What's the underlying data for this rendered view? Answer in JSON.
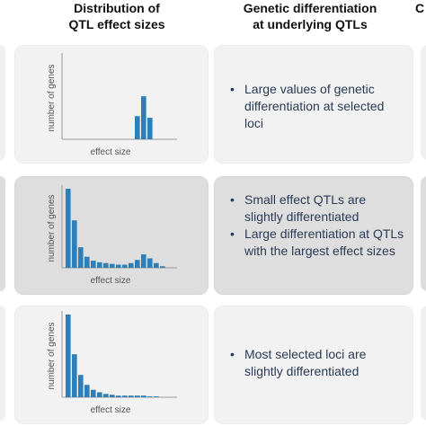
{
  "headers": {
    "left": [
      "Distribution of",
      "QTL effect sizes"
    ],
    "middle": [
      "Genetic differentiation",
      "at underlying QTLs"
    ],
    "right_clipped": "C"
  },
  "rows": [
    {
      "bullets": [
        "Large values of genetic differentiation at selected loci"
      ]
    },
    {
      "bullets": [
        "Small effect QTLs are slightly differentiated",
        "Large differentiation at QTLs with the largest effect sizes"
      ]
    },
    {
      "bullets": [
        "Most selected loci are slightly differentiated"
      ]
    }
  ],
  "chart_data": [
    {
      "type": "bar",
      "xlabel": "effect size",
      "ylabel": "number of genes",
      "values": [
        0,
        0,
        0,
        0,
        0,
        0,
        0,
        0,
        0,
        0,
        0,
        0.28,
        0.52,
        0.26,
        0,
        0
      ],
      "ylim": [
        0,
        1
      ]
    },
    {
      "type": "bar",
      "xlabel": "effect size",
      "ylabel": "number of genes",
      "values": [
        1.0,
        0.6,
        0.26,
        0.14,
        0.09,
        0.07,
        0.06,
        0.05,
        0.04,
        0.04,
        0.06,
        0.1,
        0.17,
        0.12,
        0.06,
        0.02
      ],
      "ylim": [
        0,
        1
      ]
    },
    {
      "type": "bar",
      "xlabel": "effect size",
      "ylabel": "number of genes",
      "values": [
        1.0,
        0.52,
        0.27,
        0.15,
        0.09,
        0.06,
        0.04,
        0.03,
        0.02,
        0.02,
        0.02,
        0.02,
        0.02,
        0.01,
        0.01
      ],
      "ylim": [
        0,
        1
      ]
    }
  ],
  "colors": {
    "bar": "#2e7fb8",
    "axis": "#9a9a9a"
  }
}
